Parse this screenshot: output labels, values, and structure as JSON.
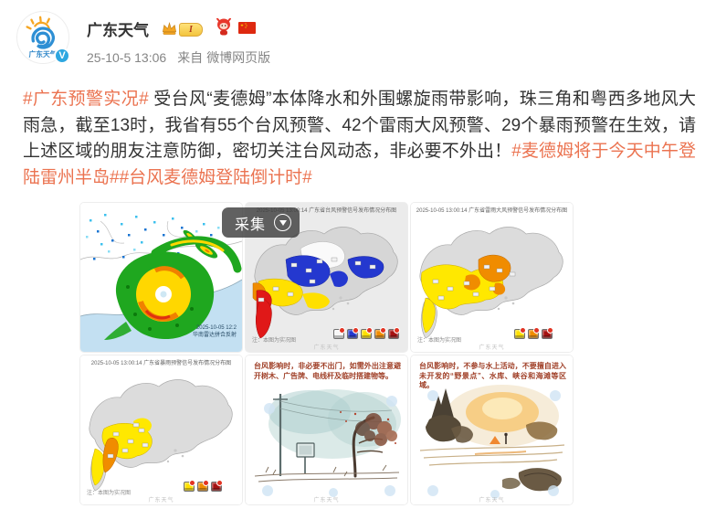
{
  "header": {
    "username": "广东天气",
    "avatar_label": "广东天气",
    "verified_label": "V",
    "level_label": "I",
    "timestamp": "25-10-5 13:06",
    "source_prefix": "来自",
    "source": "微博网页版"
  },
  "post": {
    "segments": [
      {
        "type": "hashtag",
        "text": "#广东预警实况#"
      },
      {
        "type": "plain",
        "text": " 受台风“麦德姆”本体降水和外围螺旋雨带影响，珠三角和粤西多地风大雨急，截至13时，我省有55个台风预警、42个雷雨大风预警、29个暴雨预警在生效，请上述区域的朋友注意防御，密切关注台风动态，非必要不外出！"
      },
      {
        "type": "hashtag",
        "text": "#麦德姆将于今天中午登陆雷州半岛#"
      },
      {
        "type": "hashtag",
        "text": "#台风麦德姆登陆倒计时#"
      }
    ]
  },
  "overlay": {
    "collect_label": "采集"
  },
  "images": [
    {
      "id": "radar-mosaic",
      "timestamp": "2025-10-05 12:2",
      "caption": "华南雷达拼合反射"
    },
    {
      "id": "typhoon-warning-map",
      "title": "2025-10-05 13:00:14 广东省台风预警信号发布情况分布图",
      "note": "注：本图为实况图",
      "watermark": "广东天气"
    },
    {
      "id": "gale-warning-map",
      "title": "2025-10-05 13:00:14 广东省雷雨大风预警信号发布情况分布图",
      "note": "注：本图为实况图",
      "watermark": "广东天气"
    },
    {
      "id": "rainstorm-warning-map",
      "title": "2025-10-05 13:00:14 广东省暴雨预警信号发布情况分布图",
      "note": "注：本图为实况图",
      "watermark": "广东天气"
    },
    {
      "id": "wind-safety-tip",
      "text": "台风影响时，非必要不出门，如需外出注意避开树木、广告牌、电线杆及临时搭建物等。",
      "watermark": "广东天气"
    },
    {
      "id": "water-safety-tip",
      "text": "台风影响时，不参与水上活动，不要擅自进入未开发的“野景点”、水库、峡谷和海滩等区域。",
      "watermark": "广东天气"
    }
  ],
  "colors": {
    "hashtag": "#eb7350",
    "typhoon_signal_levels": [
      "#f7f7f7",
      "#2438cf",
      "#ffe000",
      "#f08c00",
      "#a51212"
    ],
    "gale_signal_levels": [
      "#ffe000",
      "#f08c00",
      "#a51212"
    ],
    "rainstorm_signal_levels": [
      "#ffe000",
      "#f08c00",
      "#a51212"
    ]
  }
}
